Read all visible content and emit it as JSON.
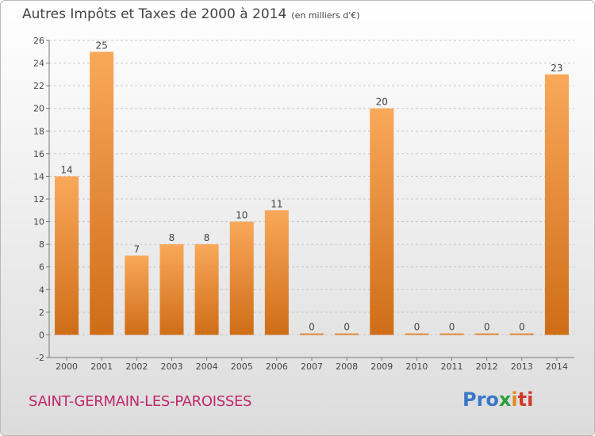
{
  "title": "Autres Impôts et Taxes de 2000 à 2014",
  "subtitle": "(en milliers d'€)",
  "location": "SAINT-GERMAIN-LES-PAROISSES",
  "logo": {
    "p1": "Pro",
    "p2": "x",
    "p3": "i",
    "p4": "ti"
  },
  "colors": {
    "bar_light": "#f9a85a",
    "bar_dark": "#cf6d17",
    "text": "#444444",
    "grid": "#c8c8c8",
    "location": "#c0286a"
  },
  "chart_data": {
    "type": "bar",
    "categories": [
      "2000",
      "2001",
      "2002",
      "2003",
      "2004",
      "2005",
      "2006",
      "2007",
      "2008",
      "2009",
      "2010",
      "2011",
      "2012",
      "2013",
      "2014"
    ],
    "values": [
      14,
      25,
      7,
      8,
      8,
      10,
      11,
      0,
      0,
      20,
      0,
      0,
      0,
      0,
      23
    ],
    "ylim": [
      -2,
      26
    ],
    "yticks": [
      -2,
      0,
      2,
      4,
      6,
      8,
      10,
      12,
      14,
      16,
      18,
      20,
      22,
      24,
      26
    ],
    "grid": true
  }
}
